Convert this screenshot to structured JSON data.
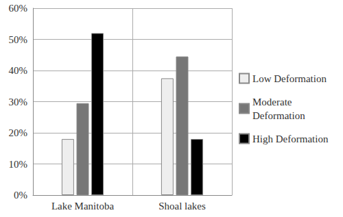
{
  "chart_data": {
    "type": "bar",
    "categories": [
      "Lake Manitoba",
      "Shoal lakes"
    ],
    "series": [
      {
        "name": "Low Deformation",
        "color": "#eeeeee",
        "values": [
          18,
          37.5
        ]
      },
      {
        "name": "Moderate Deformation",
        "color": "#777777",
        "values": [
          29.5,
          44.5
        ]
      },
      {
        "name": "High Deformation",
        "color": "#000000",
        "values": [
          52,
          18
        ]
      }
    ],
    "ylim": [
      0,
      60
    ],
    "yticks": [
      {
        "value": 0,
        "label": "0%"
      },
      {
        "value": 10,
        "label": "10%"
      },
      {
        "value": 20,
        "label": "20%"
      },
      {
        "value": 30,
        "label": "30%"
      },
      {
        "value": 40,
        "label": "40%"
      },
      {
        "value": 50,
        "label": "50%"
      },
      {
        "value": 60,
        "label": "60%"
      }
    ],
    "grid": true,
    "legend": "right"
  }
}
